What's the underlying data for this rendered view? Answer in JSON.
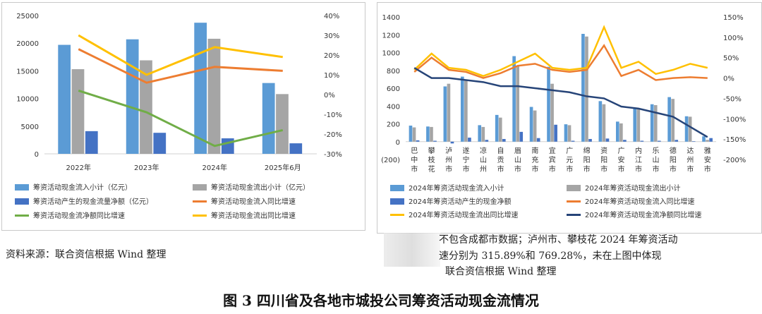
{
  "chart_data": [
    {
      "type": "bar",
      "categories": [
        "2022年",
        "2023年",
        "2024年",
        "2025年6月"
      ],
      "y_left_ticks": [
        "25000",
        "20000",
        "15000",
        "10000",
        "5000",
        "0"
      ],
      "y_right_ticks": [
        "40%",
        "30%",
        "20%",
        "10%",
        "0%",
        "-10%",
        "-20%",
        "-30%"
      ],
      "ylim_left": [
        0,
        25000
      ],
      "ylim_right": [
        -30,
        40
      ],
      "colors": {
        "inflow": "#5b9bd5",
        "outflow": "#a5a5a5",
        "net": "#4472c4",
        "inflow_yoy": "#ed7d31",
        "outflow_yoy": "#ffc000",
        "net_yoy": "#70ad47"
      },
      "bar_series": [
        {
          "key": "inflow",
          "name": "筹资活动现金流入小计（亿元）",
          "values": [
            19700,
            20700,
            23700,
            12800
          ]
        },
        {
          "key": "outflow",
          "name": "筹资活动现金流出小计（亿元）",
          "values": [
            15300,
            16900,
            20800,
            10800
          ]
        },
        {
          "key": "net",
          "name": "筹资活动产生的现金流量净额（亿元）",
          "values": [
            4100,
            3800,
            2800,
            1900
          ]
        }
      ],
      "line_series": [
        {
          "key": "inflow_yoy",
          "name": "筹资活动现金流入同比增速",
          "values": [
            23,
            6,
            14,
            12
          ]
        },
        {
          "key": "outflow_yoy",
          "name": "筹资活动现金流出同比增速",
          "values": [
            30,
            10,
            24,
            19
          ]
        },
        {
          "key": "net_yoy",
          "name": "筹资活动现金流净额同比增速",
          "values": [
            2,
            -9,
            -26,
            -18
          ]
        }
      ],
      "legend_position": "bottom",
      "grid": false
    },
    {
      "type": "bar",
      "categories": [
        "巴中市",
        "攀枝花",
        "泸州市",
        "遂宁市",
        "凉山州",
        "自贡市",
        "眉山市",
        "南充市",
        "宜宾市",
        "广元市",
        "绵阳市",
        "资阳市",
        "广安市",
        "内江市",
        "乐山市",
        "德阳市",
        "达州市",
        "雅安市"
      ],
      "y_left_ticks": [
        "1400",
        "1200",
        "1000",
        "800",
        "600",
        "400",
        "200",
        "0",
        "(200)"
      ],
      "y_right_ticks": [
        "150%",
        "100%",
        "50%",
        "0%",
        "-50%",
        "-100%",
        "-150%",
        "-200%"
      ],
      "ylim_left": [
        -200,
        1400
      ],
      "ylim_right": [
        -200,
        150
      ],
      "colors": {
        "inflow": "#5b9bd5",
        "outflow": "#a5a5a5",
        "net": "#4472c4",
        "inflow_yoy": "#ed7d31",
        "outflow_yoy": "#ffc000",
        "net_yoy": "#264478"
      },
      "bar_series": [
        {
          "key": "inflow",
          "name": "2024年筹资活动现金流入小计",
          "values": [
            180,
            170,
            620,
            730,
            185,
            300,
            960,
            390,
            840,
            195,
            1210,
            455,
            225,
            380,
            420,
            500,
            285,
            60
          ]
        },
        {
          "key": "outflow",
          "name": "2024年筹资活动现金流出小计",
          "values": [
            160,
            165,
            650,
            690,
            165,
            270,
            850,
            350,
            650,
            185,
            1180,
            420,
            205,
            370,
            410,
            480,
            280,
            20
          ]
        },
        {
          "key": "net",
          "name": "2024年筹资活动产生的现金净额",
          "values": [
            15,
            10,
            -20,
            45,
            20,
            30,
            110,
            40,
            190,
            10,
            30,
            35,
            20,
            10,
            10,
            20,
            5,
            40
          ]
        }
      ],
      "line_series": [
        {
          "key": "inflow_yoy",
          "name": "2024年筹资活动现金流入同比增速",
          "values": [
            15,
            50,
            20,
            15,
            0,
            12,
            30,
            35,
            20,
            15,
            20,
            80,
            5,
            20,
            -5,
            0,
            2,
            0
          ]
        },
        {
          "key": "outflow_yoy",
          "name": "2024年筹资活动现金流出同比增速",
          "values": [
            20,
            60,
            25,
            20,
            5,
            20,
            40,
            60,
            25,
            20,
            25,
            125,
            25,
            40,
            10,
            20,
            35,
            25
          ]
        },
        {
          "key": "net_yoy",
          "name": "2024年筹资活动现金流净额同比增速",
          "values": [
            25,
            0,
            0,
            -5,
            -10,
            -20,
            -20,
            -25,
            -30,
            -35,
            -45,
            -50,
            -70,
            -75,
            -85,
            -95,
            -120,
            -145
          ]
        }
      ],
      "legend_position": "bottom",
      "grid": false
    }
  ],
  "notes": {
    "left_source": "资料来源：联合资信根据 Wind 整理",
    "right_line1": "不包含成都市数据；泸州市、攀枝花 2024 年筹资活动",
    "right_line2": "速分别为 315.89%和 769.28%，未在上图中体现",
    "right_line3": "联合资信根据 Wind 整理"
  },
  "figure_title": "图 3    四川省及各地市城投公司筹资活动现金流情况"
}
